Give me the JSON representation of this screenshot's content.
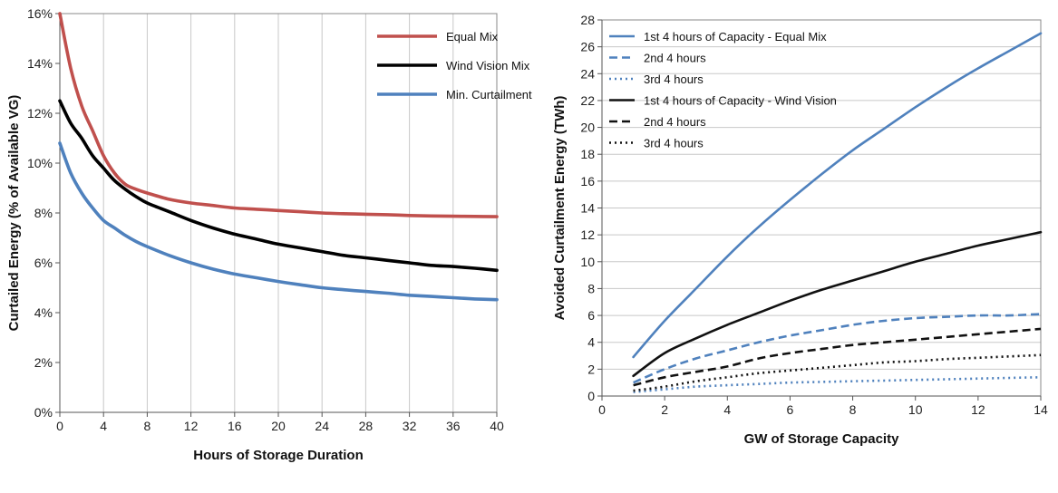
{
  "chart_data": [
    {
      "type": "line",
      "xlabel": "Hours of Storage Duration",
      "ylabel": "Curtailed Energy (% of Available VG)",
      "xlim": [
        0,
        40
      ],
      "ylim": [
        0,
        16
      ],
      "xticks": [
        0,
        4,
        8,
        12,
        16,
        20,
        24,
        28,
        32,
        36,
        40
      ],
      "yticks": [
        0,
        2,
        4,
        6,
        8,
        10,
        12,
        14,
        16
      ],
      "ytick_labels": [
        "0%",
        "2%",
        "4%",
        "6%",
        "8%",
        "10%",
        "12%",
        "14%",
        "16%"
      ],
      "grid": "vertical",
      "legend_position": "top-right",
      "series": [
        {
          "name": "Equal Mix",
          "color": "#c0504d",
          "x": [
            0,
            1,
            2,
            3,
            4,
            5,
            6,
            7,
            8,
            10,
            12,
            14,
            16,
            18,
            20,
            22,
            24,
            26,
            28,
            30,
            32,
            34,
            36,
            38,
            40
          ],
          "values": [
            16.0,
            13.8,
            12.3,
            11.3,
            10.3,
            9.6,
            9.15,
            8.95,
            8.8,
            8.55,
            8.4,
            8.3,
            8.2,
            8.15,
            8.1,
            8.05,
            8.0,
            7.97,
            7.95,
            7.93,
            7.9,
            7.88,
            7.87,
            7.86,
            7.85
          ]
        },
        {
          "name": "Wind Vision Mix",
          "color": "#000000",
          "x": [
            0,
            1,
            2,
            3,
            4,
            5,
            6,
            7,
            8,
            10,
            12,
            14,
            16,
            18,
            20,
            22,
            24,
            26,
            28,
            30,
            32,
            34,
            36,
            38,
            40
          ],
          "values": [
            12.5,
            11.6,
            11.0,
            10.3,
            9.8,
            9.3,
            8.95,
            8.65,
            8.4,
            8.05,
            7.7,
            7.4,
            7.15,
            6.95,
            6.75,
            6.6,
            6.45,
            6.3,
            6.2,
            6.1,
            6.0,
            5.9,
            5.85,
            5.78,
            5.7
          ]
        },
        {
          "name": "Min. Curtailment",
          "color": "#4f81bd",
          "x": [
            0,
            1,
            2,
            3,
            4,
            5,
            6,
            7,
            8,
            10,
            12,
            14,
            16,
            18,
            20,
            22,
            24,
            26,
            28,
            30,
            32,
            34,
            36,
            38,
            40
          ],
          "values": [
            10.8,
            9.6,
            8.8,
            8.2,
            7.7,
            7.4,
            7.1,
            6.85,
            6.65,
            6.3,
            6.0,
            5.75,
            5.55,
            5.4,
            5.25,
            5.12,
            5.0,
            4.92,
            4.85,
            4.78,
            4.7,
            4.65,
            4.6,
            4.55,
            4.52
          ]
        }
      ]
    },
    {
      "type": "line",
      "xlabel": "GW of Storage Capacity",
      "ylabel": "Avoided Curtailment Energy (TWh)",
      "xlim": [
        0,
        14
      ],
      "ylim": [
        0,
        28
      ],
      "xticks": [
        0,
        2,
        4,
        6,
        8,
        10,
        12,
        14
      ],
      "yticks": [
        0,
        2,
        4,
        6,
        8,
        10,
        12,
        14,
        16,
        18,
        20,
        22,
        24,
        26,
        28
      ],
      "grid": "horizontal",
      "legend_position": "top-left",
      "series": [
        {
          "name": "1st 4 hours of Capacity - Equal Mix",
          "color": "#4f81bd",
          "dash": "solid",
          "x": [
            1,
            2,
            3,
            4,
            5,
            6,
            7,
            8,
            9,
            10,
            11,
            12,
            13,
            14
          ],
          "values": [
            2.9,
            5.6,
            8.0,
            10.4,
            12.6,
            14.6,
            16.5,
            18.3,
            19.9,
            21.5,
            23.0,
            24.4,
            25.7,
            27.0
          ]
        },
        {
          "name": "2nd 4 hours",
          "color": "#4f81bd",
          "dash": "dashed",
          "x": [
            1,
            2,
            3,
            4,
            5,
            6,
            7,
            8,
            9,
            10,
            11,
            12,
            13,
            14
          ],
          "values": [
            1.0,
            2.0,
            2.8,
            3.4,
            4.0,
            4.5,
            4.9,
            5.3,
            5.6,
            5.8,
            5.9,
            6.0,
            6.0,
            6.1
          ]
        },
        {
          "name": "3rd 4 hours",
          "color": "#4f81bd",
          "dash": "dotted",
          "x": [
            1,
            2,
            3,
            4,
            5,
            6,
            7,
            8,
            9,
            10,
            11,
            12,
            13,
            14
          ],
          "values": [
            0.3,
            0.5,
            0.7,
            0.8,
            0.9,
            1.0,
            1.05,
            1.1,
            1.15,
            1.2,
            1.25,
            1.3,
            1.35,
            1.4
          ]
        },
        {
          "name": "1st 4 hours of Capacity - Wind Vision",
          "color": "#111111",
          "dash": "solid",
          "x": [
            1,
            2,
            3,
            4,
            5,
            6,
            7,
            8,
            9,
            10,
            11,
            12,
            13,
            14
          ],
          "values": [
            1.5,
            3.2,
            4.3,
            5.3,
            6.2,
            7.1,
            7.9,
            8.6,
            9.3,
            10.0,
            10.6,
            11.2,
            11.7,
            12.2
          ]
        },
        {
          "name": "2nd 4 hours",
          "color": "#111111",
          "dash": "dashed",
          "x": [
            1,
            2,
            3,
            4,
            5,
            6,
            7,
            8,
            9,
            10,
            11,
            12,
            13,
            14
          ],
          "values": [
            0.8,
            1.4,
            1.8,
            2.2,
            2.8,
            3.2,
            3.5,
            3.8,
            4.0,
            4.2,
            4.4,
            4.6,
            4.8,
            5.0
          ]
        },
        {
          "name": "3rd 4 hours",
          "color": "#111111",
          "dash": "dotted",
          "x": [
            1,
            2,
            3,
            4,
            5,
            6,
            7,
            8,
            9,
            10,
            11,
            12,
            13,
            14
          ],
          "values": [
            0.4,
            0.7,
            1.1,
            1.4,
            1.7,
            1.9,
            2.1,
            2.3,
            2.5,
            2.6,
            2.75,
            2.85,
            2.95,
            3.05
          ]
        }
      ]
    }
  ]
}
